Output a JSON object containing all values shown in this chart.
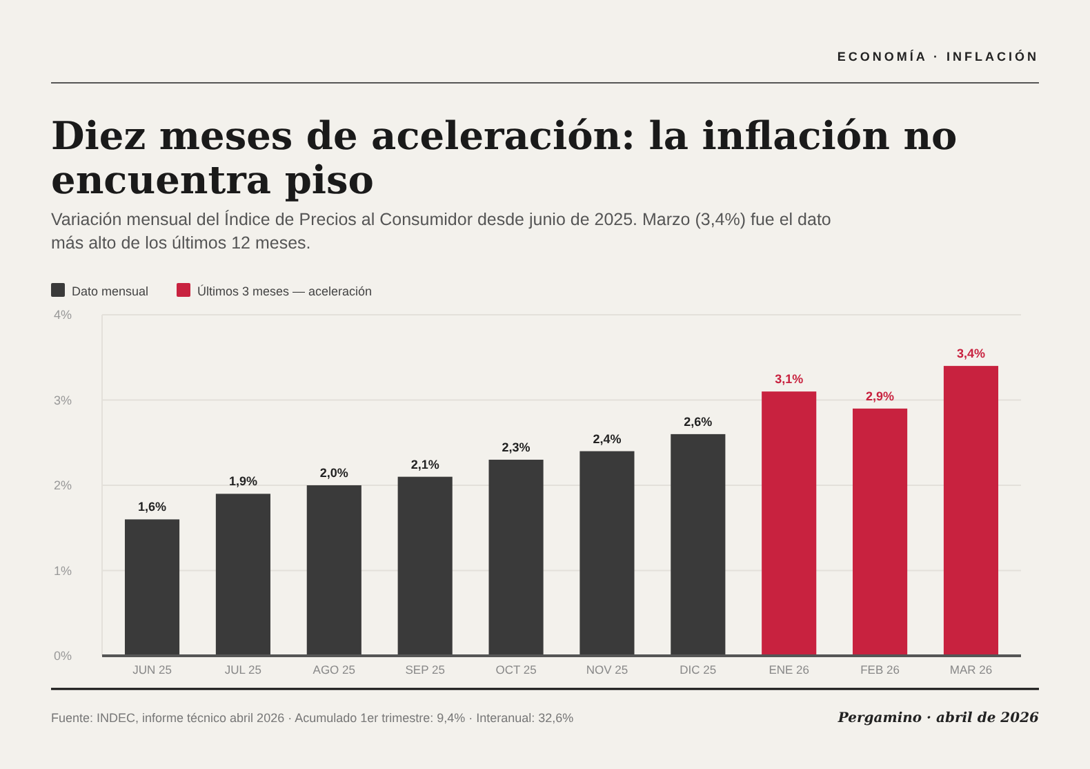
{
  "chart_data": {
    "type": "bar",
    "title": "Diez meses de aceleración: la inflación no encuentra piso",
    "subtitle": "Variación mensual del Índice de Precios al Consumidor desde junio de 2025. Marzo (3,4%) fue el dato más alto de los últimos 12 meses.",
    "categories": [
      "JUN 25",
      "JUL 25",
      "AGO 25",
      "SEP 25",
      "OCT 25",
      "NOV 25",
      "DIC 25",
      "ENE 26",
      "FEB 26",
      "MAR 26"
    ],
    "series": [
      {
        "name": "Dato mensual",
        "color": "#3a3a3a",
        "values": [
          1.6,
          1.9,
          2.0,
          2.1,
          2.3,
          2.4,
          2.6,
          null,
          null,
          null
        ],
        "value_labels": [
          "1,6%",
          "1,9%",
          "2,0%",
          "2,1%",
          "2,3%",
          "2,4%",
          "2,6%",
          null,
          null,
          null
        ]
      },
      {
        "name": "Últimos 3 meses — aceleración",
        "color": "#c8223f",
        "values": [
          null,
          null,
          null,
          null,
          null,
          null,
          null,
          3.1,
          2.9,
          3.4
        ],
        "value_labels": [
          null,
          null,
          null,
          null,
          null,
          null,
          null,
          "3,1%",
          "2,9%",
          "3,4%"
        ]
      }
    ],
    "ylim": [
      0,
      4
    ],
    "yticks": [
      {
        "value": 0,
        "label": "0%"
      },
      {
        "value": 1,
        "label": "1%"
      },
      {
        "value": 2,
        "label": "2%"
      },
      {
        "value": 3,
        "label": "3%"
      },
      {
        "value": 4,
        "label": "4%"
      }
    ],
    "grid": "y",
    "legend": "top left",
    "annotations": [
      "ECONOMÍA · INFLACIÓN",
      "Fuente: INDEC, informe técnico abril 2026 · Acumulado 1er trimestre: 9,4% · Interanual: 32,6%",
      "Pergamino · abril de 2026"
    ]
  }
}
